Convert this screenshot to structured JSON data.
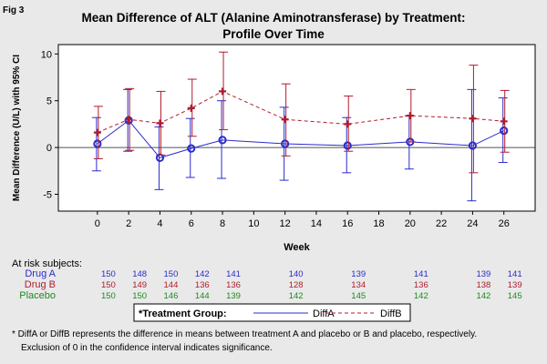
{
  "figure": {
    "label": "Fig 3",
    "title_lines": [
      "Mean Difference of ALT (Alanine Aminotransferase) by Treatment:",
      "Profile Over Time"
    ]
  },
  "chart_data": {
    "type": "line",
    "xlabel": "Week",
    "ylabel": "Mean Difference (U/L) with 95% CI",
    "xlim": [
      -2.5,
      28
    ],
    "ylim": [
      -6.8,
      11
    ],
    "xticks": [
      0,
      2,
      4,
      6,
      8,
      10,
      12,
      14,
      16,
      18,
      20,
      22,
      24,
      26
    ],
    "yticks": [
      -5,
      0,
      5,
      10
    ],
    "reference_line_y": 0,
    "series": [
      {
        "name": "DiffA",
        "color": "#2b2bcc",
        "line_style": "solid",
        "marker": "circle",
        "x": [
          0,
          2,
          4,
          6,
          8,
          12,
          16,
          20,
          24,
          26
        ],
        "y": [
          0.4,
          2.9,
          -1.1,
          -0.1,
          0.8,
          0.4,
          0.2,
          0.6,
          0.2,
          1.8
        ],
        "lower": [
          -2.5,
          -0.4,
          -4.5,
          -3.2,
          -3.3,
          -3.5,
          -2.7,
          -2.3,
          -5.7,
          -1.6
        ],
        "upper": [
          3.2,
          6.2,
          2.2,
          3.1,
          5.0,
          4.3,
          3.2,
          3.4,
          6.2,
          5.3
        ]
      },
      {
        "name": "DiffB",
        "color": "#b01c2e",
        "line_style": "dashed",
        "marker": "plus",
        "x": [
          0,
          2,
          4,
          6,
          8,
          12,
          16,
          20,
          24,
          26
        ],
        "y": [
          1.6,
          3.0,
          2.6,
          4.2,
          6.0,
          3.0,
          2.5,
          3.4,
          3.1,
          2.8
        ],
        "lower": [
          -1.2,
          -0.3,
          -0.8,
          1.2,
          1.9,
          -0.9,
          -0.4,
          0.6,
          -2.7,
          -0.5
        ],
        "upper": [
          4.4,
          6.3,
          6.0,
          7.3,
          10.2,
          6.8,
          5.5,
          6.2,
          8.8,
          6.1
        ]
      }
    ],
    "at_risk": {
      "title": "At risk subjects:",
      "rows": [
        {
          "label": "Drug A",
          "color": "#2b2bcc",
          "x": [
            0,
            2,
            4,
            6,
            8,
            12,
            16,
            20,
            24,
            26
          ],
          "values": [
            "150",
            "148",
            "150",
            "142",
            "141",
            "140",
            "139",
            "141",
            "139",
            "141"
          ]
        },
        {
          "label": "Drug B",
          "color": "#b01c2e",
          "x": [
            0,
            2,
            4,
            6,
            8,
            12,
            16,
            20,
            24,
            26
          ],
          "values": [
            "150",
            "149",
            "144",
            "136",
            "136",
            "128",
            "134",
            "136",
            "138",
            "139"
          ]
        },
        {
          "label": "Placebo",
          "color": "#1e8a1e",
          "x": [
            0,
            2,
            4,
            6,
            8,
            12,
            16,
            20,
            24,
            26
          ],
          "values": [
            "150",
            "150",
            "146",
            "144",
            "139",
            "142",
            "145",
            "142",
            "142",
            "145"
          ]
        }
      ]
    },
    "legend": {
      "title": "*Treatment Group:",
      "placement": "bottom",
      "items": [
        "DiffA",
        "DiffB"
      ]
    }
  },
  "footnote": {
    "lines": [
      "*  DiffA or DiffB represents the difference in means between treatment A and placebo or B and placebo, respectively.",
      "Exclusion of 0 in the confidence interval indicates significance."
    ]
  }
}
